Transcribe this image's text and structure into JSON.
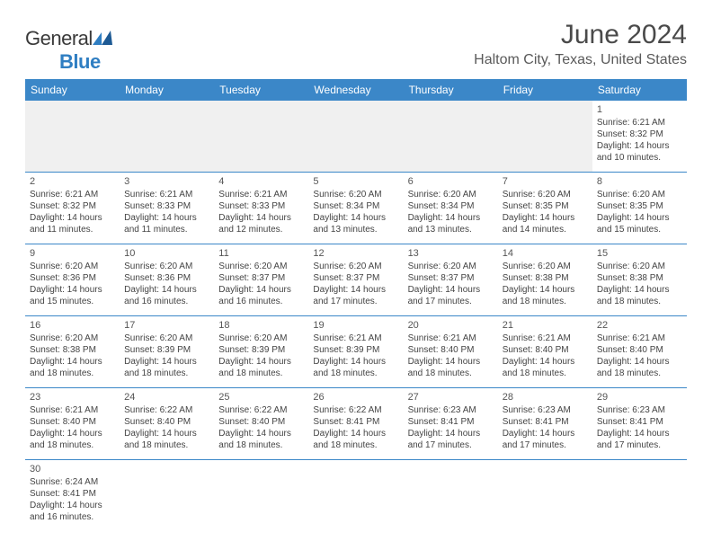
{
  "logo": {
    "text_general": "General",
    "text_blue": "Blue"
  },
  "title": "June 2024",
  "location": "Haltom City, Texas, United States",
  "colors": {
    "header_bg": "#3b87c8",
    "header_text": "#ffffff",
    "cell_border": "#3b87c8",
    "blank_bg": "#f0f0f0",
    "logo_blue": "#2f7ec2",
    "text": "#444444"
  },
  "day_headers": [
    "Sunday",
    "Monday",
    "Tuesday",
    "Wednesday",
    "Thursday",
    "Friday",
    "Saturday"
  ],
  "weeks": [
    [
      null,
      null,
      null,
      null,
      null,
      null,
      {
        "n": "1",
        "sunrise": "6:21 AM",
        "sunset": "8:32 PM",
        "daylight": "14 hours and 10 minutes."
      }
    ],
    [
      {
        "n": "2",
        "sunrise": "6:21 AM",
        "sunset": "8:32 PM",
        "daylight": "14 hours and 11 minutes."
      },
      {
        "n": "3",
        "sunrise": "6:21 AM",
        "sunset": "8:33 PM",
        "daylight": "14 hours and 11 minutes."
      },
      {
        "n": "4",
        "sunrise": "6:21 AM",
        "sunset": "8:33 PM",
        "daylight": "14 hours and 12 minutes."
      },
      {
        "n": "5",
        "sunrise": "6:20 AM",
        "sunset": "8:34 PM",
        "daylight": "14 hours and 13 minutes."
      },
      {
        "n": "6",
        "sunrise": "6:20 AM",
        "sunset": "8:34 PM",
        "daylight": "14 hours and 13 minutes."
      },
      {
        "n": "7",
        "sunrise": "6:20 AM",
        "sunset": "8:35 PM",
        "daylight": "14 hours and 14 minutes."
      },
      {
        "n": "8",
        "sunrise": "6:20 AM",
        "sunset": "8:35 PM",
        "daylight": "14 hours and 15 minutes."
      }
    ],
    [
      {
        "n": "9",
        "sunrise": "6:20 AM",
        "sunset": "8:36 PM",
        "daylight": "14 hours and 15 minutes."
      },
      {
        "n": "10",
        "sunrise": "6:20 AM",
        "sunset": "8:36 PM",
        "daylight": "14 hours and 16 minutes."
      },
      {
        "n": "11",
        "sunrise": "6:20 AM",
        "sunset": "8:37 PM",
        "daylight": "14 hours and 16 minutes."
      },
      {
        "n": "12",
        "sunrise": "6:20 AM",
        "sunset": "8:37 PM",
        "daylight": "14 hours and 17 minutes."
      },
      {
        "n": "13",
        "sunrise": "6:20 AM",
        "sunset": "8:37 PM",
        "daylight": "14 hours and 17 minutes."
      },
      {
        "n": "14",
        "sunrise": "6:20 AM",
        "sunset": "8:38 PM",
        "daylight": "14 hours and 18 minutes."
      },
      {
        "n": "15",
        "sunrise": "6:20 AM",
        "sunset": "8:38 PM",
        "daylight": "14 hours and 18 minutes."
      }
    ],
    [
      {
        "n": "16",
        "sunrise": "6:20 AM",
        "sunset": "8:38 PM",
        "daylight": "14 hours and 18 minutes."
      },
      {
        "n": "17",
        "sunrise": "6:20 AM",
        "sunset": "8:39 PM",
        "daylight": "14 hours and 18 minutes."
      },
      {
        "n": "18",
        "sunrise": "6:20 AM",
        "sunset": "8:39 PM",
        "daylight": "14 hours and 18 minutes."
      },
      {
        "n": "19",
        "sunrise": "6:21 AM",
        "sunset": "8:39 PM",
        "daylight": "14 hours and 18 minutes."
      },
      {
        "n": "20",
        "sunrise": "6:21 AM",
        "sunset": "8:40 PM",
        "daylight": "14 hours and 18 minutes."
      },
      {
        "n": "21",
        "sunrise": "6:21 AM",
        "sunset": "8:40 PM",
        "daylight": "14 hours and 18 minutes."
      },
      {
        "n": "22",
        "sunrise": "6:21 AM",
        "sunset": "8:40 PM",
        "daylight": "14 hours and 18 minutes."
      }
    ],
    [
      {
        "n": "23",
        "sunrise": "6:21 AM",
        "sunset": "8:40 PM",
        "daylight": "14 hours and 18 minutes."
      },
      {
        "n": "24",
        "sunrise": "6:22 AM",
        "sunset": "8:40 PM",
        "daylight": "14 hours and 18 minutes."
      },
      {
        "n": "25",
        "sunrise": "6:22 AM",
        "sunset": "8:40 PM",
        "daylight": "14 hours and 18 minutes."
      },
      {
        "n": "26",
        "sunrise": "6:22 AM",
        "sunset": "8:41 PM",
        "daylight": "14 hours and 18 minutes."
      },
      {
        "n": "27",
        "sunrise": "6:23 AM",
        "sunset": "8:41 PM",
        "daylight": "14 hours and 17 minutes."
      },
      {
        "n": "28",
        "sunrise": "6:23 AM",
        "sunset": "8:41 PM",
        "daylight": "14 hours and 17 minutes."
      },
      {
        "n": "29",
        "sunrise": "6:23 AM",
        "sunset": "8:41 PM",
        "daylight": "14 hours and 17 minutes."
      }
    ],
    [
      {
        "n": "30",
        "sunrise": "6:24 AM",
        "sunset": "8:41 PM",
        "daylight": "14 hours and 16 minutes."
      },
      null,
      null,
      null,
      null,
      null,
      null
    ]
  ],
  "labels": {
    "sunrise_prefix": "Sunrise: ",
    "sunset_prefix": "Sunset: ",
    "daylight_prefix": "Daylight: "
  }
}
